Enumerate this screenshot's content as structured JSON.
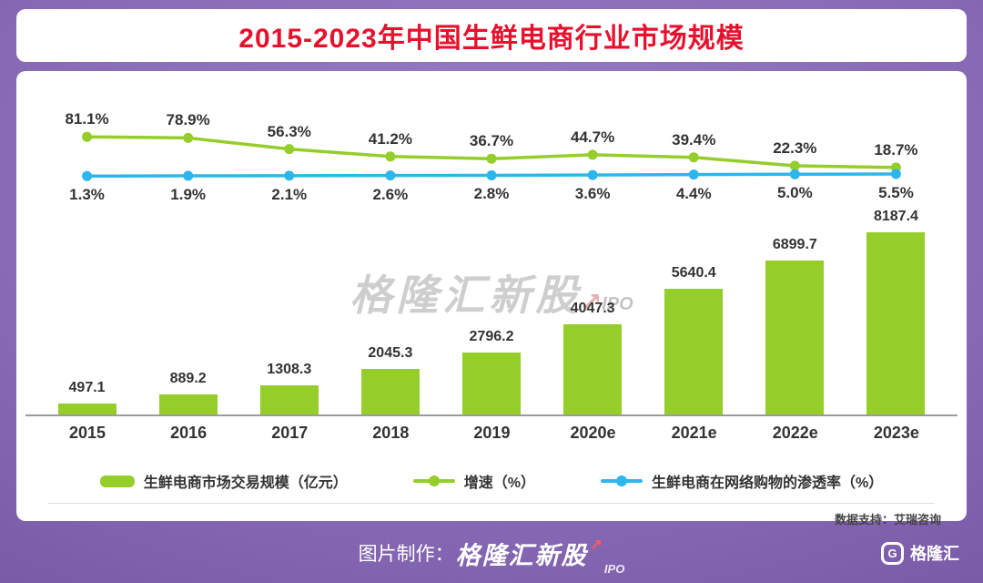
{
  "header": {
    "title": "2015-2023年中国生鲜电商行业市场规模"
  },
  "chart_data": {
    "type": "bar",
    "title": "2015-2023年中国生鲜电商行业市场规模",
    "categories": [
      "2015",
      "2016",
      "2017",
      "2018",
      "2019",
      "2020e",
      "2021e",
      "2022e",
      "2023e"
    ],
    "series": [
      {
        "name": "生鲜电商市场交易规模（亿元）",
        "type": "bar",
        "color": "#95cd2b",
        "values": [
          497.1,
          889.2,
          1308.3,
          2045.3,
          2796.2,
          4047.3,
          5640.4,
          6899.7,
          8187.4
        ],
        "labels": [
          "497.1",
          "889.2",
          "1308.3",
          "2045.3",
          "2796.2",
          "4047.3",
          "5640.4",
          "6899.7",
          "8187.4"
        ]
      },
      {
        "name": "增速（%）",
        "type": "line",
        "color": "#95cd2b",
        "label_position": "above",
        "values": [
          81.1,
          78.9,
          56.3,
          41.2,
          36.7,
          44.7,
          39.4,
          22.3,
          18.7
        ],
        "labels": [
          "81.1%",
          "78.9%",
          "56.3%",
          "41.2%",
          "36.7%",
          "44.7%",
          "39.4%",
          "22.3%",
          "18.7%"
        ]
      },
      {
        "name": "生鲜电商在网络购物的渗透率（%）",
        "type": "line",
        "color": "#2bb7ec",
        "label_position": "below",
        "values": [
          1.3,
          1.9,
          2.1,
          2.6,
          2.8,
          3.6,
          4.4,
          5.0,
          5.5
        ],
        "labels": [
          "1.3%",
          "1.9%",
          "2.1%",
          "2.6%",
          "2.8%",
          "3.6%",
          "4.4%",
          "5.0%",
          "5.5%"
        ]
      }
    ],
    "legend_position": "bottom",
    "grid": false,
    "line_axis_range": [
      0,
      100
    ]
  },
  "watermark": {
    "text": "格隆汇新股",
    "sub": "IPO",
    "arrow": "↗"
  },
  "source": {
    "label": "数据支持：艾瑞咨询"
  },
  "footer": {
    "credit_label": "图片制作：",
    "brand": "格隆汇新股",
    "brand_sub": "IPO",
    "arrow": "↗",
    "logo_letter": "G",
    "logo_text": "格隆汇"
  }
}
